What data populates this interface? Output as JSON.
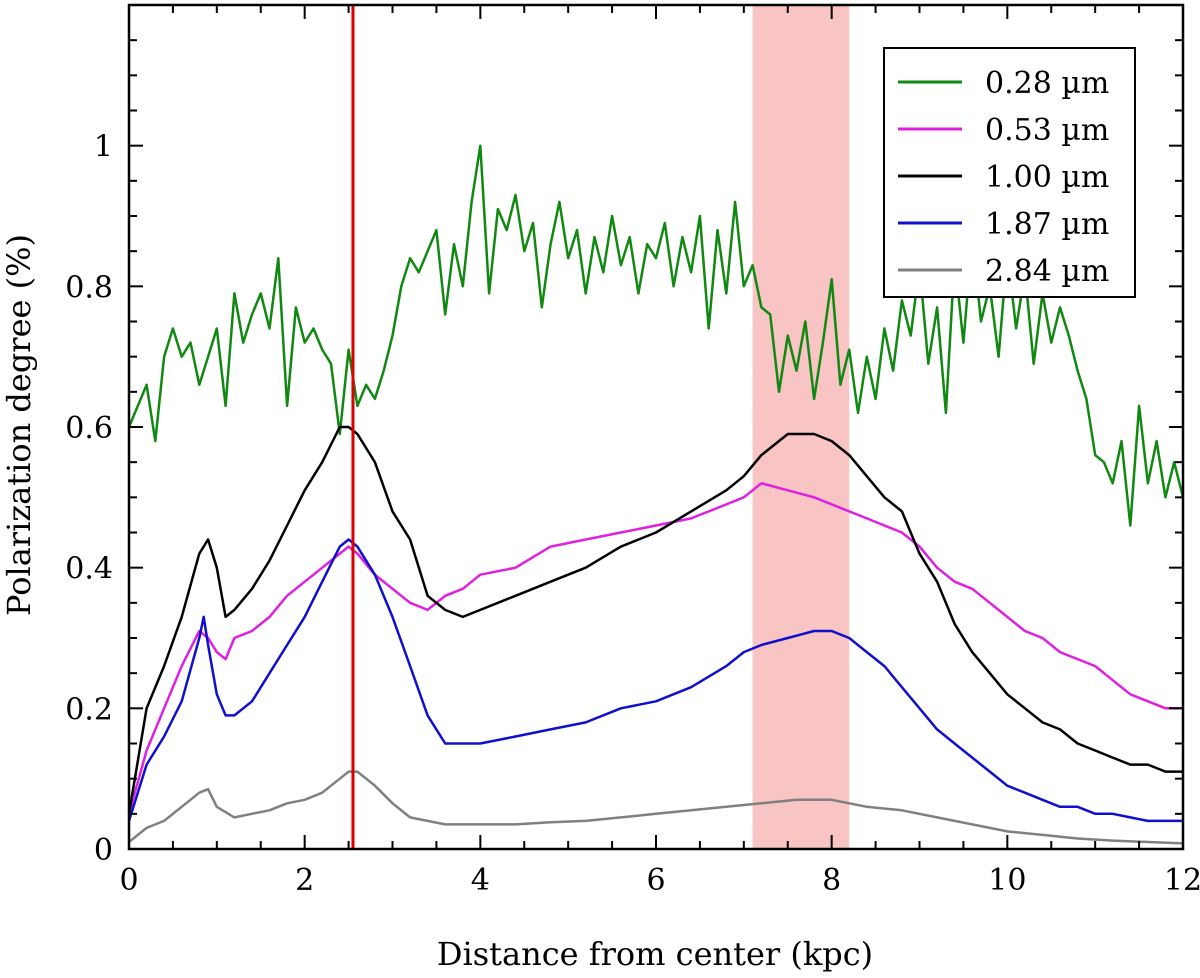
{
  "chart_data": {
    "type": "line",
    "title": "",
    "xlabel": "Distance from center (kpc)",
    "ylabel": "Polarization degree (%)",
    "xlim": [
      0,
      12
    ],
    "ylim": [
      0,
      1.2
    ],
    "xticks": [
      0,
      2,
      4,
      6,
      8,
      10,
      12
    ],
    "xtick_labels": [
      "0",
      "2",
      "4",
      "6",
      "8",
      "10",
      "12"
    ],
    "yticks": [
      0,
      0.2,
      0.4,
      0.6,
      0.8,
      1.0
    ],
    "ytick_labels": [
      "0",
      "0.2",
      "0.4",
      "0.6",
      "0.8",
      "1"
    ],
    "legend_position": "top-right",
    "grid": false,
    "annotations": {
      "vertical_line": {
        "x": 2.55,
        "color": "#dd0000"
      },
      "shaded_band": {
        "x_start": 7.1,
        "x_end": 8.2,
        "color": "#f8c4c4"
      }
    },
    "series": [
      {
        "name": "0.28 µm",
        "color": "#118811",
        "x": [
          0,
          0.2,
          0.3,
          0.4,
          0.5,
          0.6,
          0.7,
          0.8,
          0.9,
          1.0,
          1.1,
          1.2,
          1.3,
          1.4,
          1.5,
          1.6,
          1.7,
          1.8,
          1.9,
          2.0,
          2.1,
          2.2,
          2.3,
          2.4,
          2.5,
          2.6,
          2.7,
          2.8,
          2.9,
          3.0,
          3.1,
          3.2,
          3.3,
          3.4,
          3.5,
          3.6,
          3.7,
          3.8,
          3.9,
          4.0,
          4.1,
          4.2,
          4.3,
          4.4,
          4.5,
          4.6,
          4.7,
          4.8,
          4.9,
          5.0,
          5.1,
          5.2,
          5.3,
          5.4,
          5.5,
          5.6,
          5.7,
          5.8,
          5.9,
          6.0,
          6.1,
          6.2,
          6.3,
          6.4,
          6.5,
          6.6,
          6.7,
          6.8,
          6.9,
          7.0,
          7.1,
          7.2,
          7.3,
          7.4,
          7.5,
          7.6,
          7.7,
          7.8,
          7.9,
          8.0,
          8.1,
          8.2,
          8.3,
          8.4,
          8.5,
          8.6,
          8.7,
          8.8,
          8.9,
          9.0,
          9.1,
          9.2,
          9.3,
          9.4,
          9.5,
          9.6,
          9.7,
          9.8,
          9.9,
          10.0,
          10.1,
          10.2,
          10.3,
          10.4,
          10.5,
          10.6,
          10.7,
          10.8,
          10.9,
          11.0,
          11.1,
          11.2,
          11.3,
          11.4,
          11.5,
          11.6,
          11.7,
          11.8,
          11.9,
          12.0
        ],
        "values": [
          0.6,
          0.66,
          0.58,
          0.7,
          0.74,
          0.7,
          0.72,
          0.66,
          0.7,
          0.74,
          0.63,
          0.79,
          0.72,
          0.76,
          0.79,
          0.74,
          0.84,
          0.63,
          0.77,
          0.72,
          0.74,
          0.71,
          0.69,
          0.59,
          0.71,
          0.63,
          0.66,
          0.64,
          0.68,
          0.73,
          0.8,
          0.84,
          0.82,
          0.85,
          0.88,
          0.76,
          0.86,
          0.8,
          0.92,
          1.0,
          0.79,
          0.91,
          0.88,
          0.93,
          0.85,
          0.89,
          0.77,
          0.86,
          0.92,
          0.84,
          0.88,
          0.79,
          0.87,
          0.82,
          0.9,
          0.83,
          0.87,
          0.79,
          0.86,
          0.84,
          0.89,
          0.8,
          0.87,
          0.82,
          0.9,
          0.74,
          0.88,
          0.79,
          0.92,
          0.8,
          0.83,
          0.77,
          0.76,
          0.65,
          0.73,
          0.68,
          0.75,
          0.64,
          0.72,
          0.81,
          0.66,
          0.71,
          0.62,
          0.7,
          0.64,
          0.74,
          0.68,
          0.78,
          0.73,
          0.83,
          0.69,
          0.77,
          0.62,
          0.84,
          0.72,
          0.87,
          0.75,
          0.8,
          0.7,
          0.85,
          0.74,
          0.82,
          0.69,
          0.79,
          0.72,
          0.77,
          0.73,
          0.68,
          0.64,
          0.56,
          0.55,
          0.52,
          0.58,
          0.46,
          0.63,
          0.52,
          0.58,
          0.5,
          0.55,
          0.5
        ]
      },
      {
        "name": "0.53 µm",
        "color": "#e020e0",
        "x": [
          0,
          0.2,
          0.4,
          0.6,
          0.8,
          0.9,
          1.0,
          1.1,
          1.2,
          1.4,
          1.6,
          1.8,
          2.0,
          2.2,
          2.4,
          2.5,
          2.6,
          2.8,
          3.0,
          3.2,
          3.4,
          3.6,
          3.8,
          4.0,
          4.4,
          4.8,
          5.2,
          5.6,
          6.0,
          6.4,
          6.8,
          7.0,
          7.2,
          7.5,
          7.8,
          8.0,
          8.2,
          8.4,
          8.6,
          8.8,
          9.0,
          9.2,
          9.4,
          9.6,
          9.8,
          10.0,
          10.2,
          10.4,
          10.6,
          10.8,
          11.0,
          11.2,
          11.4,
          11.6,
          11.8,
          12.0
        ],
        "values": [
          0.05,
          0.14,
          0.2,
          0.26,
          0.31,
          0.3,
          0.28,
          0.27,
          0.3,
          0.31,
          0.33,
          0.36,
          0.38,
          0.4,
          0.42,
          0.43,
          0.42,
          0.39,
          0.37,
          0.35,
          0.34,
          0.36,
          0.37,
          0.39,
          0.4,
          0.43,
          0.44,
          0.45,
          0.46,
          0.47,
          0.49,
          0.5,
          0.52,
          0.51,
          0.5,
          0.49,
          0.48,
          0.47,
          0.46,
          0.45,
          0.43,
          0.4,
          0.38,
          0.37,
          0.35,
          0.33,
          0.31,
          0.3,
          0.28,
          0.27,
          0.26,
          0.24,
          0.22,
          0.21,
          0.2,
          0.2
        ]
      },
      {
        "name": "1.00 µm",
        "color": "#000000",
        "x": [
          0,
          0.2,
          0.4,
          0.6,
          0.8,
          0.9,
          1.0,
          1.1,
          1.2,
          1.4,
          1.6,
          1.8,
          2.0,
          2.2,
          2.4,
          2.5,
          2.6,
          2.8,
          3.0,
          3.2,
          3.4,
          3.6,
          3.8,
          4.0,
          4.4,
          4.8,
          5.2,
          5.6,
          6.0,
          6.4,
          6.8,
          7.0,
          7.2,
          7.5,
          7.8,
          8.0,
          8.2,
          8.4,
          8.6,
          8.8,
          9.0,
          9.2,
          9.4,
          9.6,
          9.8,
          10.0,
          10.2,
          10.4,
          10.6,
          10.8,
          11.0,
          11.2,
          11.4,
          11.6,
          11.8,
          12.0
        ],
        "values": [
          0.05,
          0.2,
          0.26,
          0.33,
          0.42,
          0.44,
          0.4,
          0.33,
          0.34,
          0.37,
          0.41,
          0.46,
          0.51,
          0.55,
          0.6,
          0.6,
          0.59,
          0.55,
          0.48,
          0.44,
          0.36,
          0.34,
          0.33,
          0.34,
          0.36,
          0.38,
          0.4,
          0.43,
          0.45,
          0.48,
          0.51,
          0.53,
          0.56,
          0.59,
          0.59,
          0.58,
          0.56,
          0.53,
          0.5,
          0.48,
          0.42,
          0.38,
          0.32,
          0.28,
          0.25,
          0.22,
          0.2,
          0.18,
          0.17,
          0.15,
          0.14,
          0.13,
          0.12,
          0.12,
          0.11,
          0.11
        ]
      },
      {
        "name": "1.87 µm",
        "color": "#1010cc",
        "x": [
          0,
          0.2,
          0.4,
          0.6,
          0.8,
          0.85,
          0.9,
          1.0,
          1.1,
          1.2,
          1.4,
          1.6,
          1.8,
          2.0,
          2.2,
          2.4,
          2.5,
          2.6,
          2.8,
          3.0,
          3.2,
          3.4,
          3.6,
          3.8,
          4.0,
          4.4,
          4.8,
          5.2,
          5.6,
          6.0,
          6.4,
          6.8,
          7.0,
          7.2,
          7.5,
          7.8,
          8.0,
          8.2,
          8.4,
          8.6,
          8.8,
          9.0,
          9.2,
          9.4,
          9.6,
          9.8,
          10.0,
          10.2,
          10.4,
          10.6,
          10.8,
          11.0,
          11.2,
          11.4,
          11.6,
          11.8,
          12.0
        ],
        "values": [
          0.04,
          0.12,
          0.16,
          0.21,
          0.3,
          0.33,
          0.29,
          0.22,
          0.19,
          0.19,
          0.21,
          0.25,
          0.29,
          0.33,
          0.38,
          0.43,
          0.44,
          0.43,
          0.39,
          0.33,
          0.26,
          0.19,
          0.15,
          0.15,
          0.15,
          0.16,
          0.17,
          0.18,
          0.2,
          0.21,
          0.23,
          0.26,
          0.28,
          0.29,
          0.3,
          0.31,
          0.31,
          0.3,
          0.28,
          0.26,
          0.23,
          0.2,
          0.17,
          0.15,
          0.13,
          0.11,
          0.09,
          0.08,
          0.07,
          0.06,
          0.06,
          0.05,
          0.05,
          0.045,
          0.04,
          0.04,
          0.04
        ]
      },
      {
        "name": "2.84 µm",
        "color": "#808080",
        "x": [
          0,
          0.2,
          0.4,
          0.6,
          0.8,
          0.9,
          1.0,
          1.2,
          1.4,
          1.6,
          1.8,
          2.0,
          2.2,
          2.4,
          2.5,
          2.6,
          2.8,
          3.0,
          3.2,
          3.4,
          3.6,
          4.0,
          4.4,
          4.8,
          5.2,
          5.6,
          6.0,
          6.4,
          6.8,
          7.2,
          7.6,
          8.0,
          8.4,
          8.8,
          9.2,
          9.6,
          10.0,
          10.4,
          10.8,
          11.2,
          11.6,
          12.0
        ],
        "values": [
          0.01,
          0.03,
          0.04,
          0.06,
          0.08,
          0.085,
          0.06,
          0.045,
          0.05,
          0.055,
          0.065,
          0.07,
          0.08,
          0.1,
          0.11,
          0.11,
          0.09,
          0.065,
          0.045,
          0.04,
          0.035,
          0.035,
          0.035,
          0.038,
          0.04,
          0.045,
          0.05,
          0.055,
          0.06,
          0.065,
          0.07,
          0.07,
          0.06,
          0.055,
          0.045,
          0.035,
          0.025,
          0.02,
          0.015,
          0.012,
          0.01,
          0.008
        ]
      }
    ]
  }
}
